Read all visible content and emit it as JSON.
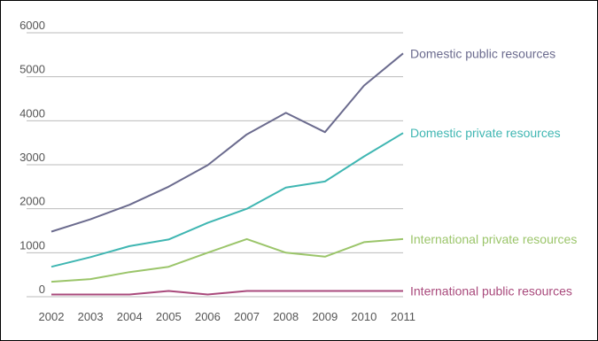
{
  "chart_data": {
    "type": "line",
    "title": "",
    "xlabel": "",
    "ylabel": "",
    "x": [
      "2002",
      "2003",
      "2004",
      "2005",
      "2006",
      "2007",
      "2008",
      "2009",
      "2010",
      "2011"
    ],
    "ylim": [
      0,
      6000
    ],
    "yticks": [
      0,
      1000,
      2000,
      3000,
      4000,
      5000,
      6000
    ],
    "grid": "horizontal",
    "legend": "inline labels at line ends (right)",
    "series": [
      {
        "name": "Domestic public resources",
        "color": "#6b6b8e",
        "values": [
          1480,
          1760,
          2090,
          2500,
          2990,
          3690,
          4180,
          3740,
          4800,
          5530
        ]
      },
      {
        "name": "Domestic private resources",
        "color": "#3fb6b2",
        "values": [
          680,
          900,
          1150,
          1300,
          1680,
          2000,
          2480,
          2620,
          3190,
          3720
        ]
      },
      {
        "name": "International private resources",
        "color": "#9bc56a",
        "values": [
          340,
          400,
          560,
          680,
          1000,
          1310,
          1000,
          910,
          1240,
          1310
        ]
      },
      {
        "name": "International public resources",
        "color": "#a94a7c",
        "values": [
          50,
          50,
          50,
          130,
          50,
          130,
          130,
          130,
          130,
          130
        ]
      }
    ]
  }
}
